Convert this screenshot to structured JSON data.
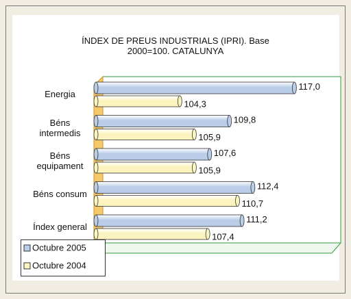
{
  "chart_data": {
    "type": "bar",
    "orientation": "horizontal",
    "title": "ÍNDEX DE PREUS INDUSTRIALS (IPRI). Base\n2000=100. CATALUNYA",
    "categories": [
      "Energia",
      "Béns\nintermedis",
      "Béns\nequipament",
      "Béns consum",
      "Índex general"
    ],
    "series": [
      {
        "name": "Octubre 2005",
        "color": "#b9cde8",
        "values": [
          117.0,
          109.8,
          107.6,
          112.4,
          111.2
        ],
        "value_labels": [
          "117,0",
          "109,8",
          "107,6",
          "112,4",
          "111,2"
        ]
      },
      {
        "name": "Octubre 2004",
        "color": "#fcf4bf",
        "values": [
          104.3,
          105.9,
          105.9,
          110.7,
          107.4
        ],
        "value_labels": [
          "104,3",
          "105,9",
          "105,9",
          "110,7",
          "107,4"
        ]
      }
    ],
    "xlim": [
      95,
      121
    ]
  }
}
